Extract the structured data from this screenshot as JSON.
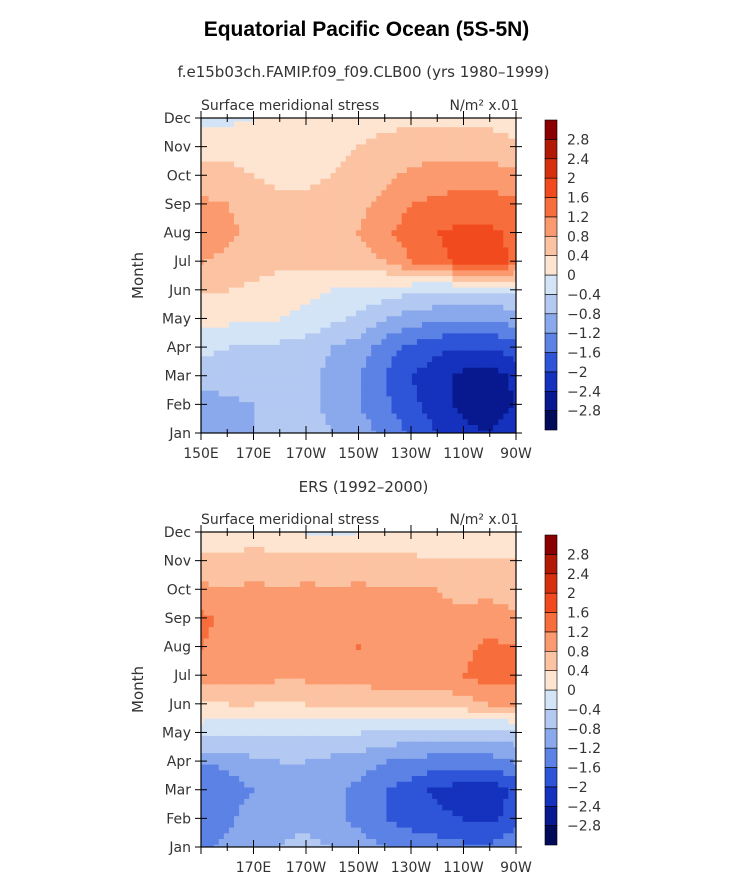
{
  "page_title": "Equatorial Pacific Ocean (5S-5N)",
  "colorbar": {
    "levels": [
      "2.8",
      "2.4",
      "2",
      "1.6",
      "1.2",
      "0.8",
      "0.4",
      "0",
      "−0.4",
      "−0.8",
      "−1.2",
      "−1.6",
      "−2",
      "−2.4",
      "−2.8"
    ],
    "colors": [
      "#8b0000",
      "#b31a06",
      "#d6300f",
      "#f04a1e",
      "#f76d3c",
      "#fb9a6e",
      "#fcc3a2",
      "#fde5d2",
      "#d4e4f7",
      "#b3c9f2",
      "#8aa9ec",
      "#5b82e4",
      "#2e55d8",
      "#1432bd",
      "#08188e",
      "#020a5a"
    ]
  },
  "chart_data": [
    {
      "type": "heatmap",
      "title": "f.e15b03ch.FAMIP.f09_f09.CLB00 (yrs 1980–1999)",
      "left_label": "Surface meridional stress",
      "right_label": "N/m² x.01",
      "ylabel": "Month",
      "xlabel": "",
      "months": [
        "Jan",
        "Feb",
        "Mar",
        "Apr",
        "May",
        "Jun",
        "Jul",
        "Aug",
        "Sep",
        "Oct",
        "Nov",
        "Dec"
      ],
      "xtick_labels": [
        "150E",
        "170E",
        "170W",
        "150W",
        "130W",
        "110W",
        "90W"
      ],
      "xlim_deg_east": [
        150,
        270
      ],
      "lons": [
        150,
        160,
        170,
        180,
        190,
        200,
        210,
        220,
        230,
        240,
        250,
        260,
        270
      ],
      "values": [
        [
          -0.9,
          -1.0,
          -0.8,
          -0.5,
          -0.6,
          -0.8,
          -1.0,
          -1.3,
          -1.7,
          -2.0,
          -2.3,
          -2.4,
          -2.1
        ],
        [
          -1.0,
          -0.9,
          -0.8,
          -0.6,
          -0.7,
          -0.9,
          -1.2,
          -1.5,
          -1.9,
          -2.2,
          -2.5,
          -2.7,
          -2.4
        ],
        [
          -0.6,
          -0.6,
          -0.6,
          -0.6,
          -0.7,
          -0.9,
          -1.2,
          -1.6,
          -2.0,
          -2.2,
          -2.5,
          -2.6,
          -2.3
        ],
        [
          -0.3,
          -0.4,
          -0.5,
          -0.5,
          -0.6,
          -0.8,
          -1.0,
          -1.4,
          -1.7,
          -1.9,
          -2.0,
          -2.0,
          -1.8
        ],
        [
          0.1,
          0.1,
          0.1,
          0.0,
          -0.1,
          -0.3,
          -0.5,
          -0.8,
          -1.0,
          -1.1,
          -1.2,
          -1.2,
          -1.0
        ],
        [
          0.4,
          0.4,
          0.3,
          0.2,
          0.1,
          0.0,
          -0.1,
          -0.2,
          -0.3,
          -0.4,
          -0.4,
          -0.4,
          -0.3
        ],
        [
          0.8,
          0.7,
          0.6,
          0.5,
          0.5,
          0.5,
          0.6,
          0.8,
          1.2,
          1.5,
          1.7,
          1.8,
          1.5
        ],
        [
          1.0,
          0.9,
          0.7,
          0.6,
          0.6,
          0.7,
          0.8,
          1.1,
          1.4,
          1.6,
          1.7,
          1.7,
          1.5
        ],
        [
          0.9,
          0.8,
          0.6,
          0.5,
          0.5,
          0.6,
          0.7,
          0.9,
          1.2,
          1.3,
          1.4,
          1.4,
          1.3
        ],
        [
          0.5,
          0.5,
          0.4,
          0.3,
          0.3,
          0.4,
          0.6,
          0.7,
          0.9,
          1.0,
          1.0,
          1.0,
          0.9
        ],
        [
          0.3,
          0.3,
          0.2,
          0.1,
          0.2,
          0.2,
          0.4,
          0.5,
          0.6,
          0.6,
          0.6,
          0.6,
          0.5
        ],
        [
          -0.2,
          -0.1,
          0.0,
          0.1,
          0.1,
          0.2,
          0.3,
          0.3,
          0.3,
          0.3,
          0.3,
          0.3,
          0.2
        ]
      ]
    },
    {
      "type": "heatmap",
      "title": "ERS (1992–2000)",
      "left_label": "Surface meridional stress",
      "right_label": "N/m² x.01",
      "ylabel": "Month",
      "xlabel": "",
      "months": [
        "Jan",
        "Feb",
        "Mar",
        "Apr",
        "May",
        "Jun",
        "Jul",
        "Aug",
        "Sep",
        "Oct",
        "Nov",
        "Dec"
      ],
      "xtick_labels": [
        "170E",
        "170W",
        "150W",
        "130W",
        "110W",
        "90W"
      ],
      "xlim_deg_east": [
        150,
        270
      ],
      "lons": [
        150,
        160,
        170,
        180,
        190,
        200,
        210,
        220,
        230,
        240,
        250,
        260,
        270
      ],
      "values": [
        [
          -1.3,
          -1.1,
          -0.9,
          -0.8,
          -0.7,
          -0.8,
          -1.0,
          -1.2,
          -1.3,
          -1.4,
          -1.5,
          -1.5,
          -1.3
        ],
        [
          -1.5,
          -1.3,
          -1.0,
          -0.9,
          -0.9,
          -1.1,
          -1.3,
          -1.6,
          -1.8,
          -1.9,
          -2.0,
          -2.1,
          -1.8
        ],
        [
          -1.6,
          -1.4,
          -1.2,
          -1.0,
          -1.0,
          -1.1,
          -1.3,
          -1.6,
          -1.8,
          -2.1,
          -2.2,
          -2.3,
          -1.9
        ],
        [
          -1.2,
          -1.1,
          -0.9,
          -0.8,
          -0.8,
          -0.9,
          -1.0,
          -1.2,
          -1.3,
          -1.4,
          -1.4,
          -1.4,
          -1.2
        ],
        [
          -0.2,
          -0.3,
          -0.3,
          -0.3,
          -0.3,
          -0.4,
          -0.4,
          -0.5,
          -0.5,
          -0.6,
          -0.6,
          -0.6,
          -0.5
        ],
        [
          0.3,
          0.4,
          0.4,
          0.3,
          0.4,
          0.5,
          0.4,
          0.5,
          0.6,
          0.5,
          0.6,
          0.8,
          0.8
        ],
        [
          1.0,
          0.9,
          1.0,
          0.9,
          0.9,
          1.0,
          1.0,
          1.1,
          1.0,
          1.1,
          1.2,
          1.4,
          1.3
        ],
        [
          1.2,
          1.1,
          1.1,
          1.0,
          1.2,
          1.1,
          1.2,
          1.1,
          1.2,
          1.0,
          1.1,
          1.3,
          1.2
        ],
        [
          1.3,
          1.1,
          1.0,
          1.1,
          1.0,
          1.1,
          1.0,
          1.1,
          1.0,
          0.9,
          0.9,
          1.0,
          0.9
        ],
        [
          0.9,
          0.8,
          0.9,
          0.8,
          0.9,
          0.8,
          0.9,
          0.8,
          0.8,
          0.8,
          0.7,
          0.7,
          0.6
        ],
        [
          0.5,
          0.5,
          0.6,
          0.5,
          0.5,
          0.6,
          0.5,
          0.5,
          0.5,
          0.4,
          0.4,
          0.4,
          0.4
        ],
        [
          0.0,
          0.1,
          0.2,
          0.1,
          0.0,
          -0.1,
          0.0,
          0.1,
          0.1,
          0.1,
          0.1,
          0.1,
          0.0
        ]
      ]
    }
  ]
}
